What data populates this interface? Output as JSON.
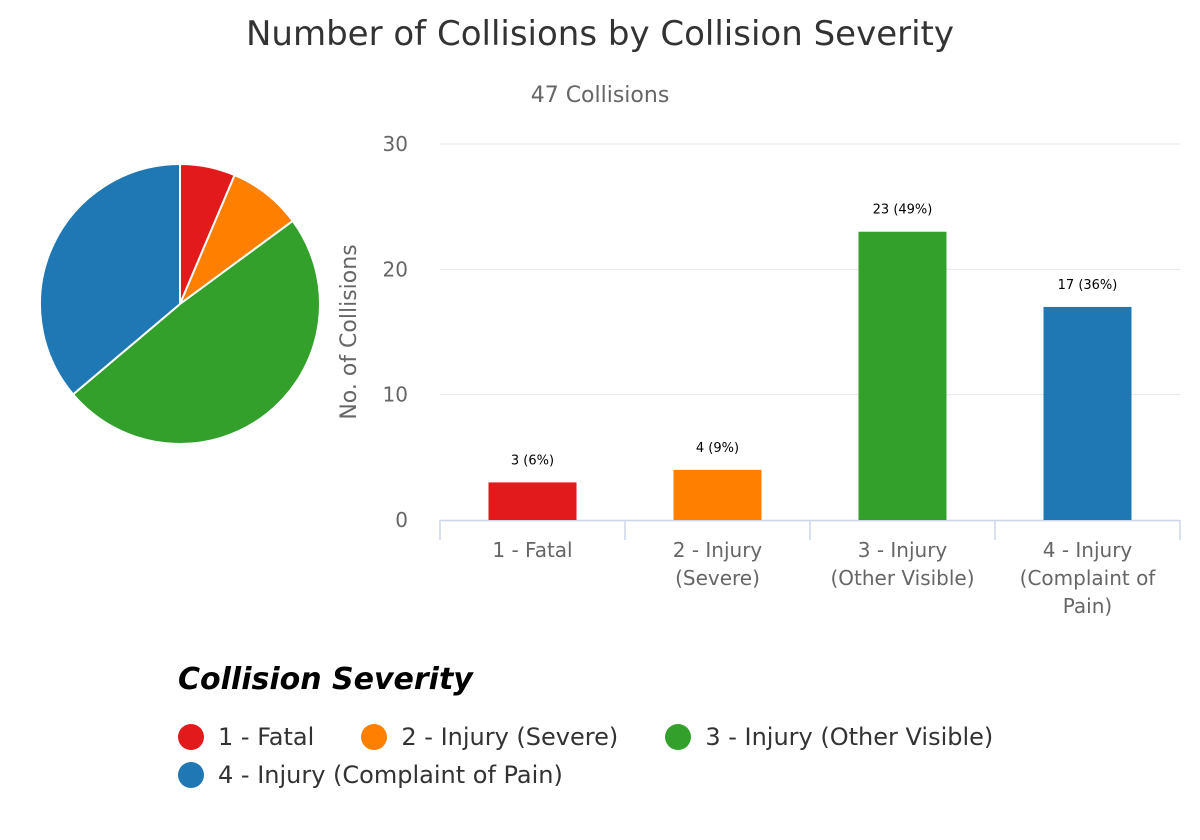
{
  "chart_data": {
    "type": "bar",
    "title": "Number of Collisions by Collision Severity",
    "subtitle": "47 Collisions",
    "ylabel": "No. of Collisions",
    "xlabel": "",
    "ylim": [
      0,
      30
    ],
    "yticks": [
      "0",
      "10",
      "20",
      "30"
    ],
    "grid": true,
    "categories": [
      {
        "lines": [
          "1 - Fatal"
        ]
      },
      {
        "lines": [
          "2 - Injury",
          "(Severe)"
        ]
      },
      {
        "lines": [
          "3 - Injury",
          "(Other Visible)"
        ]
      },
      {
        "lines": [
          "4 - Injury",
          "(Complaint of",
          "Pain)"
        ]
      }
    ],
    "values": [
      3,
      4,
      23,
      17
    ],
    "data_labels": [
      "3 (6%)",
      "4 (9%)",
      "23 (49%)",
      "17 (36%)"
    ],
    "colors": [
      "#e31a1c",
      "#ff7f00",
      "#33a02c",
      "#1f78b4"
    ],
    "pie": {
      "type": "pie",
      "labels": [
        "1 - Fatal",
        "2 - Injury (Severe)",
        "3 - Injury (Other Visible)",
        "4 - Injury (Complaint of Pain)"
      ],
      "values": [
        3,
        4,
        23,
        17
      ],
      "colors": [
        "#e31a1c",
        "#ff7f00",
        "#33a02c",
        "#1f78b4"
      ]
    },
    "legend": {
      "title": "Collision Severity",
      "placement": "bottom-left",
      "items": [
        {
          "label": "1 - Fatal",
          "color": "#e31a1c"
        },
        {
          "label": "2 - Injury (Severe)",
          "color": "#ff7f00"
        },
        {
          "label": "3 - Injury (Other Visible)",
          "color": "#33a02c"
        },
        {
          "label": "4 - Injury (Complaint of Pain)",
          "color": "#1f78b4"
        }
      ]
    }
  }
}
